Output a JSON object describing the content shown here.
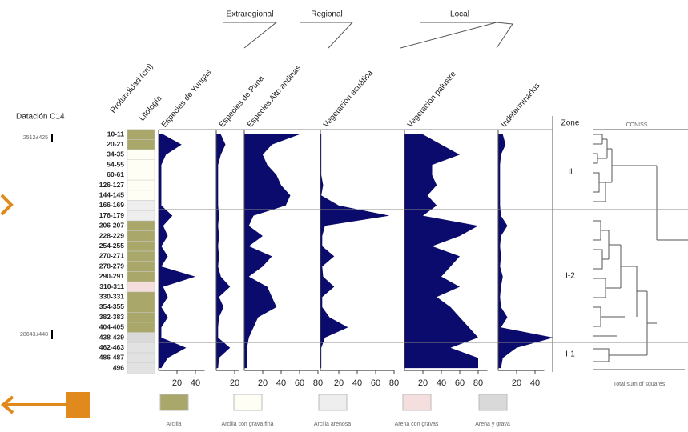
{
  "chart_data": {
    "type": "area",
    "dating_label": "Datación C14",
    "depth_label": "Profundidad (cm)",
    "lithology_label": "Litología",
    "dates": [
      "2512±425",
      "28643±448"
    ],
    "groups": [
      "Extraregional",
      "Regional",
      "Local"
    ],
    "depths": [
      "10-11",
      "20-21",
      "34-35",
      "54-55",
      "60-61",
      "126-127",
      "144-145",
      "166-169",
      "176-179",
      "206-207",
      "228-229",
      "254-255",
      "270-271",
      "278-279",
      "290-291",
      "310-311",
      "330-331",
      "354-355",
      "382-383",
      "404-405",
      "438-439",
      "462-463",
      "486-487",
      "496"
    ],
    "color": "#0b0b6e",
    "panels": [
      {
        "name": "Especies de Yungas",
        "xlim": [
          0,
          50
        ],
        "xticks": [
          20,
          40
        ],
        "values": [
          5,
          25,
          8,
          3,
          3,
          3,
          3,
          3,
          15,
          5,
          10,
          3,
          10,
          3,
          40,
          5,
          10,
          3,
          10,
          3,
          3,
          30,
          10,
          3
        ]
      },
      {
        "name": "Especies de Puna",
        "xlim": [
          0,
          25
        ],
        "xticks": [
          20
        ],
        "values": [
          5,
          10,
          5,
          2,
          2,
          2,
          2,
          2,
          3,
          2,
          3,
          2,
          3,
          2,
          5,
          15,
          3,
          8,
          3,
          2,
          2,
          15,
          3,
          2
        ]
      },
      {
        "name": "Especies Alto andinas",
        "xlim": [
          0,
          80
        ],
        "xticks": [
          20,
          40,
          60,
          80
        ],
        "values": [
          60,
          30,
          20,
          25,
          35,
          40,
          50,
          45,
          10,
          5,
          20,
          5,
          30,
          20,
          5,
          25,
          30,
          35,
          15,
          10,
          5,
          3,
          3,
          3
        ]
      },
      {
        "name": "Vegetación acuática",
        "xlim": [
          0,
          80
        ],
        "xticks": [
          20,
          40,
          60,
          80
        ],
        "values": [
          1,
          1,
          1,
          1,
          1,
          3,
          1,
          20,
          75,
          5,
          2,
          2,
          15,
          2,
          3,
          15,
          2,
          2,
          10,
          30,
          5,
          1,
          1,
          1
        ]
      },
      {
        "name": "Vegetación palustre",
        "xlim": [
          0,
          90
        ],
        "xticks": [
          20,
          40,
          60,
          80
        ],
        "values": [
          20,
          40,
          60,
          30,
          30,
          35,
          25,
          35,
          20,
          80,
          60,
          30,
          60,
          50,
          40,
          60,
          35,
          50,
          60,
          70,
          80,
          50,
          80,
          80
        ]
      },
      {
        "name": "Indeterminados",
        "xlim": [
          0,
          50
        ],
        "xticks": [
          20,
          40
        ],
        "values": [
          5,
          8,
          3,
          2,
          2,
          2,
          2,
          2,
          3,
          10,
          3,
          2,
          3,
          2,
          5,
          3,
          2,
          3,
          10,
          3,
          60,
          20,
          5,
          3
        ]
      }
    ],
    "zone_label": "Zone",
    "zones": [
      "II",
      "I-2",
      "I-1"
    ],
    "coniss_title": "CONISS",
    "coniss_xlabel": "Total sum of squares",
    "legend": [
      "Arcilla",
      "Arcilla con grava fina",
      "Arcilla arenosa",
      "Arena con gravas",
      "Arena y grava"
    ]
  }
}
